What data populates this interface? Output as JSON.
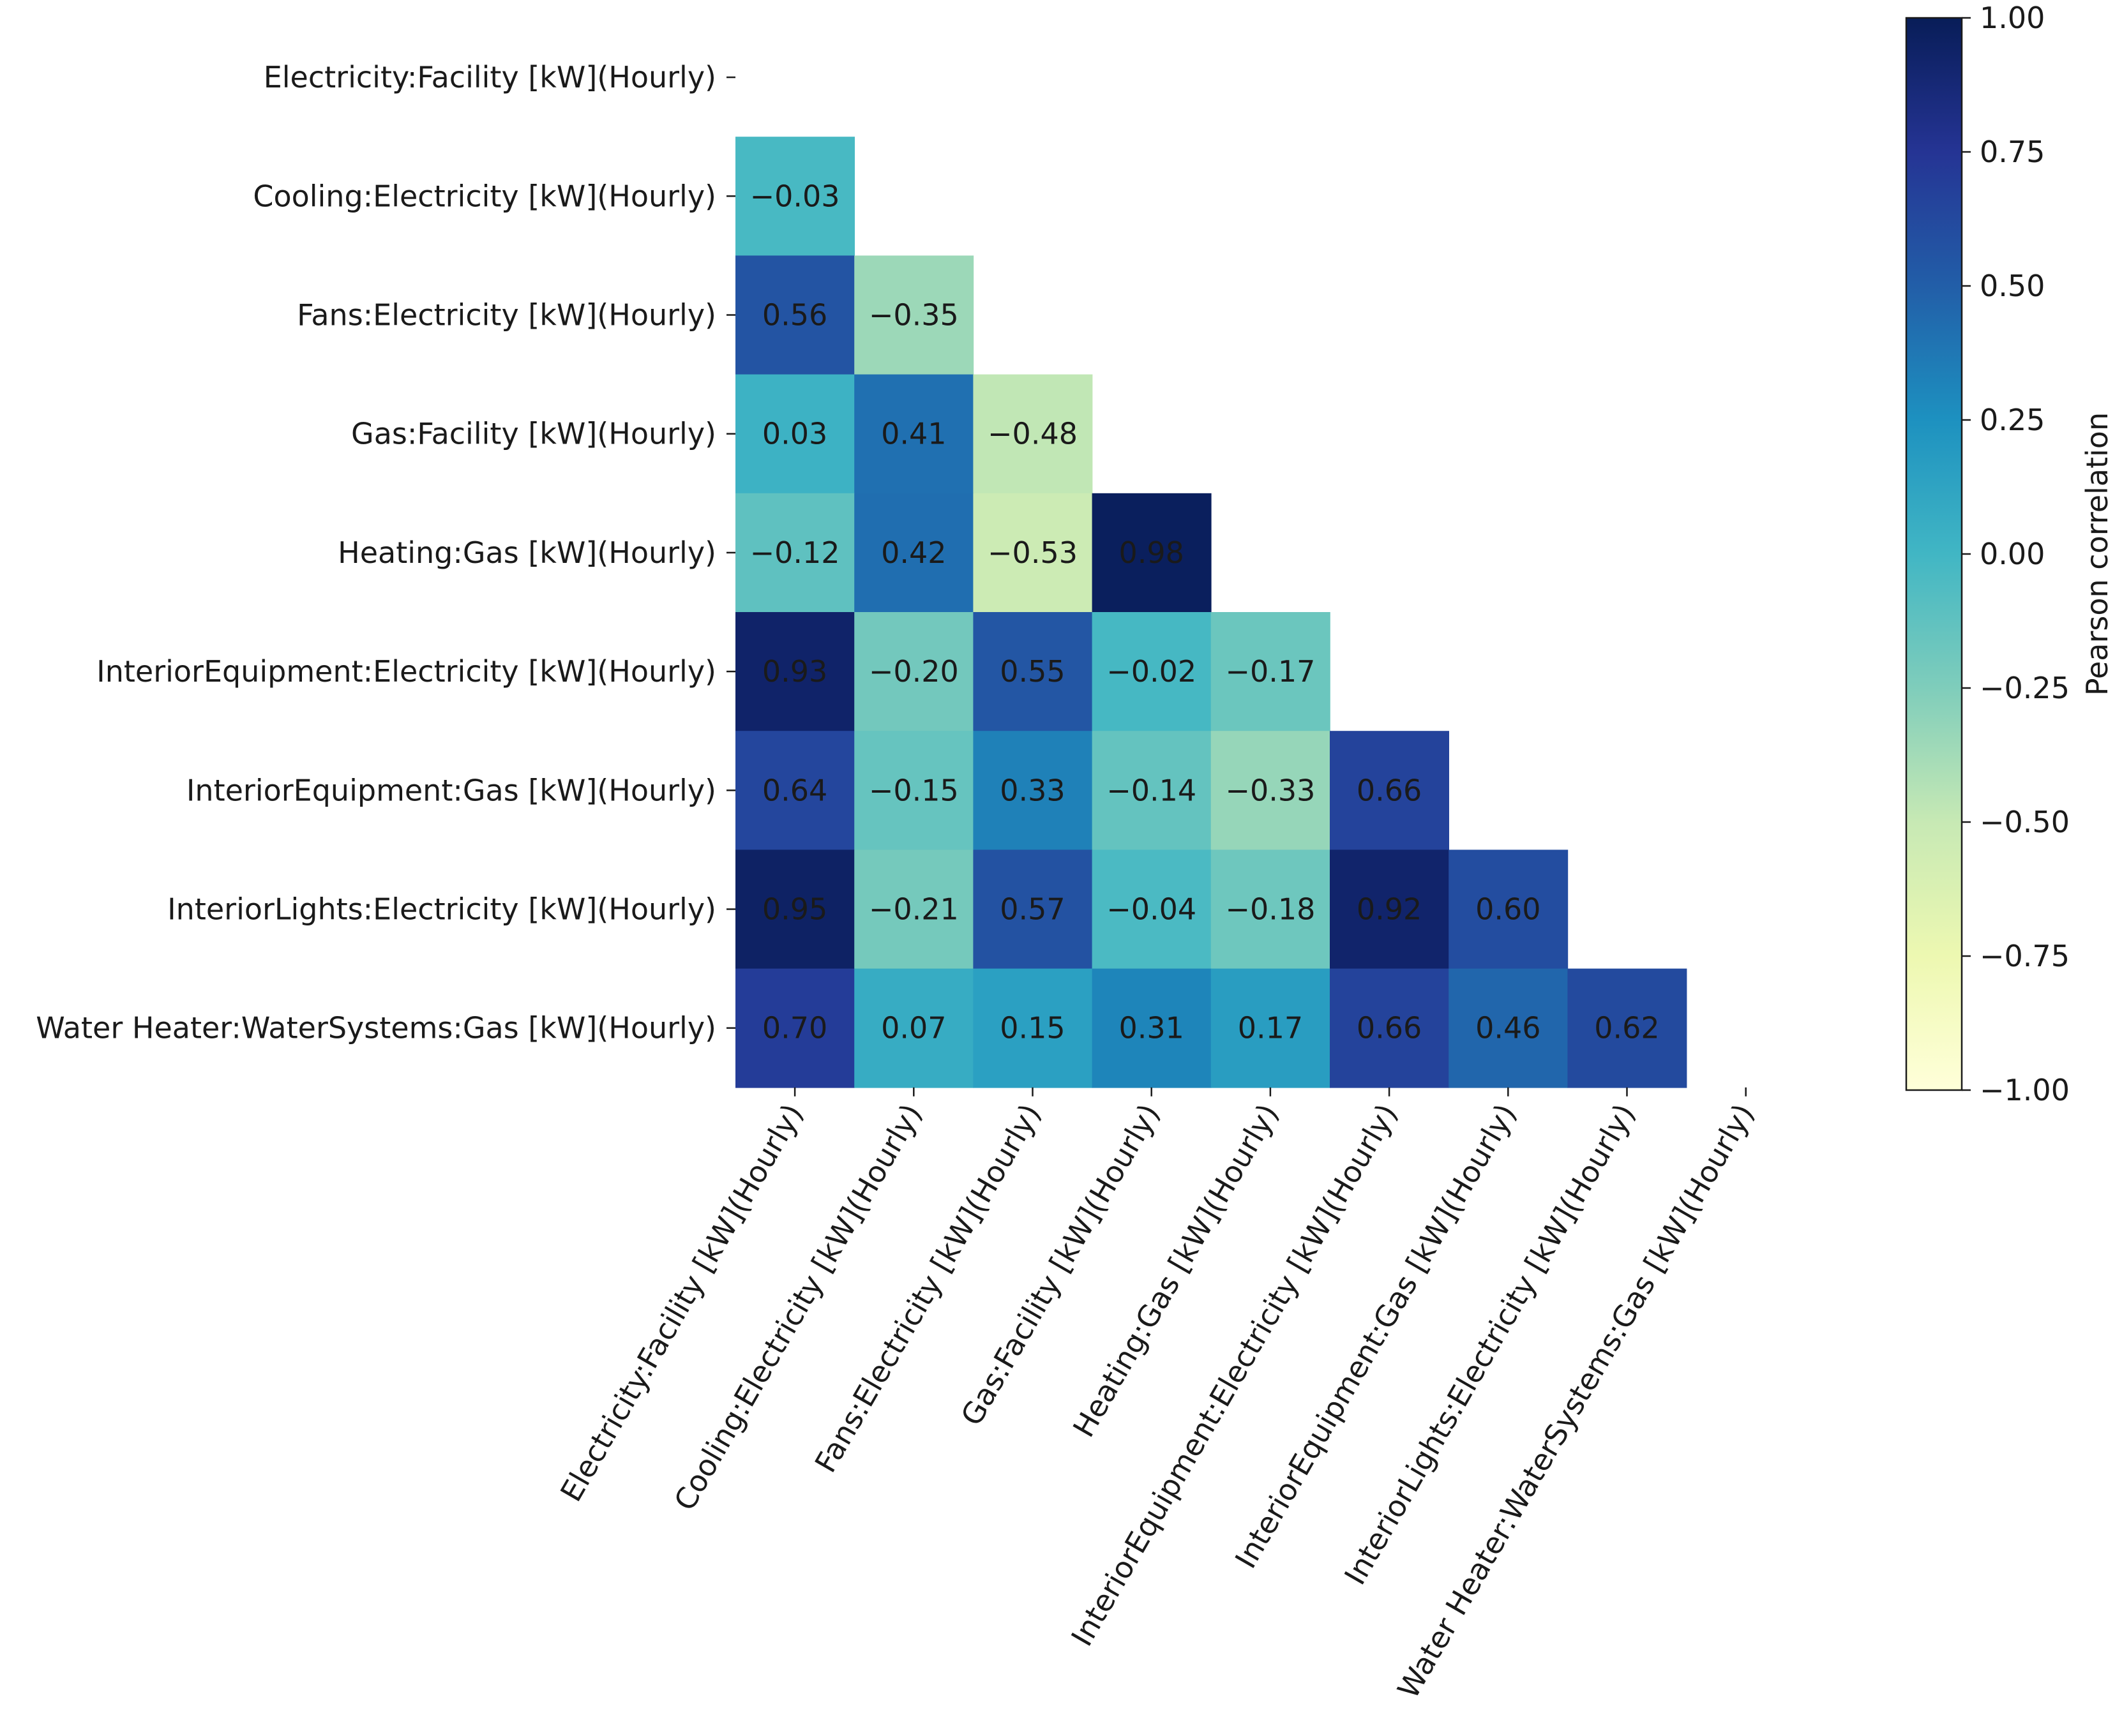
{
  "chart_data": {
    "type": "heatmap",
    "variant": "lower-triangle correlation matrix",
    "title": "",
    "xlabel": "",
    "ylabel": "",
    "labels": [
      "Electricity:Facility [kW](Hourly)",
      "Cooling:Electricity [kW](Hourly)",
      "Fans:Electricity [kW](Hourly)",
      "Gas:Facility [kW](Hourly)",
      "Heating:Gas [kW](Hourly)",
      "InteriorEquipment:Electricity [kW](Hourly)",
      "InteriorEquipment:Gas [kW](Hourly)",
      "InteriorLights:Electricity [kW](Hourly)",
      "Water Heater:WaterSystems:Gas [kW](Hourly)"
    ],
    "matrix": [
      [
        null,
        null,
        null,
        null,
        null,
        null,
        null,
        null,
        null
      ],
      [
        -0.03,
        null,
        null,
        null,
        null,
        null,
        null,
        null,
        null
      ],
      [
        0.56,
        -0.35,
        null,
        null,
        null,
        null,
        null,
        null,
        null
      ],
      [
        0.03,
        0.41,
        -0.48,
        null,
        null,
        null,
        null,
        null,
        null
      ],
      [
        -0.12,
        0.42,
        -0.53,
        0.98,
        null,
        null,
        null,
        null,
        null
      ],
      [
        0.93,
        -0.2,
        0.55,
        -0.02,
        -0.17,
        null,
        null,
        null,
        null
      ],
      [
        0.64,
        -0.15,
        0.33,
        -0.14,
        -0.33,
        0.66,
        null,
        null,
        null
      ],
      [
        0.95,
        -0.21,
        0.57,
        -0.04,
        -0.18,
        0.92,
        0.6,
        null,
        null
      ],
      [
        0.7,
        0.07,
        0.15,
        0.31,
        0.17,
        0.66,
        0.46,
        0.62,
        null
      ]
    ],
    "colorbar": {
      "label": "Pearson correlation",
      "range": [
        -1.0,
        1.0
      ],
      "ticks": [
        1.0,
        0.75,
        0.5,
        0.25,
        0.0,
        -0.25,
        -0.5,
        -0.75,
        -1.0
      ],
      "tick_labels": [
        "1.00",
        "0.75",
        "0.50",
        "0.25",
        "0.00",
        "−0.25",
        "−0.50",
        "−0.75",
        "−1.00"
      ],
      "colormap": "YlGnBu",
      "colormap_stops": [
        "#ffffd9",
        "#edf8b1",
        "#c7e9b4",
        "#7fcdbb",
        "#41b6c4",
        "#1d91c0",
        "#225ea8",
        "#253494",
        "#081d58"
      ]
    },
    "grid": false,
    "legend": "colorbar-right"
  }
}
